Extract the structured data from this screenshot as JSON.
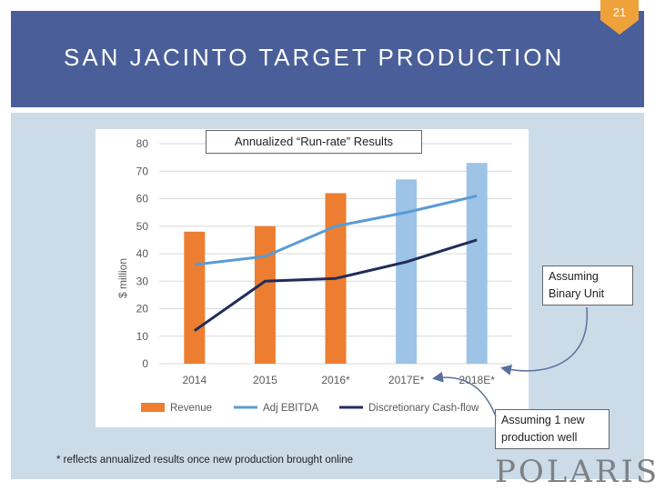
{
  "slide": {
    "title": "SAN JACINTO TARGET PRODUCTION",
    "page_number": "21",
    "footnote": "* reflects annualized results once new production brought online",
    "logo_text": "POLARIS"
  },
  "callouts": {
    "binary_unit": "Assuming Binary Unit",
    "new_well": "Assuming 1 new production well"
  },
  "colors": {
    "header": "#4a5f99",
    "badge": "#f0a23a",
    "revenue_actual": "#ed7d31",
    "revenue_estimate": "#9dc3e6",
    "adj_ebitda": "#5b9bd5",
    "cashflow": "#1f2d5a"
  },
  "chart_data": {
    "type": "bar",
    "title": "Annualized “Run-rate” Results",
    "xlabel": "",
    "ylabel": "$ million",
    "ylim": [
      0,
      80
    ],
    "yticks": [
      0,
      10,
      20,
      30,
      40,
      50,
      60,
      70,
      80
    ],
    "categories": [
      "2014",
      "2015",
      "2016*",
      "2017E*",
      "2018E*"
    ],
    "gridlines": true,
    "legend_position": "bottom",
    "series": [
      {
        "name": "Revenue",
        "kind": "bar",
        "values": [
          48,
          50,
          62,
          67,
          73
        ],
        "estimate_flags": [
          false,
          false,
          false,
          true,
          true
        ]
      },
      {
        "name": "Adj EBITDA",
        "kind": "line",
        "values": [
          36,
          39,
          50,
          55,
          61
        ]
      },
      {
        "name": "Discretionary Cash-flow",
        "kind": "line",
        "values": [
          12,
          30,
          31,
          37,
          45
        ]
      }
    ]
  }
}
